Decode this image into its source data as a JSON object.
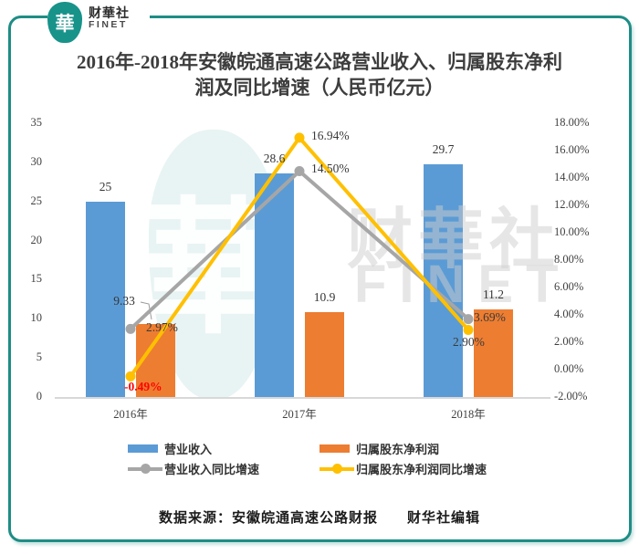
{
  "logo": {
    "glyph": "華",
    "brand_cn": "财華社",
    "brand_en": "FINET"
  },
  "title": "2016年-2018年安徽皖通高速公路营业收入、归属股东净利润及同比增速（人民币亿元）",
  "watermark": {
    "glyph": "華",
    "text_cn": "财華社",
    "text_en": "FINET"
  },
  "chart_data": {
    "type": "combo-bar-line",
    "title": "2016年-2018年安徽皖通高速公路营业收入、归属股东净利润及同比增速（人民币亿元）",
    "categories": [
      "2016年",
      "2017年",
      "2018年"
    ],
    "series": [
      {
        "name": "营业收入",
        "kind": "bar",
        "axis": "left",
        "color": "#5B9BD5",
        "values": [
          25,
          28.6,
          29.7
        ],
        "labels": [
          "25",
          "28.6",
          "29.7"
        ]
      },
      {
        "name": "归属股东净利润",
        "kind": "bar",
        "axis": "left",
        "color": "#ED7D31",
        "values": [
          9.33,
          10.9,
          11.2
        ],
        "labels": [
          "9.33",
          "10.9",
          "11.2"
        ]
      },
      {
        "name": "营业收入同比增速",
        "kind": "line",
        "axis": "right",
        "color": "#A6A6A6",
        "values": [
          2.97,
          14.5,
          3.69
        ],
        "labels": [
          "2.97%",
          "14.50%",
          "3.69%"
        ]
      },
      {
        "name": "归属股东净利润同比增速",
        "kind": "line",
        "axis": "right",
        "color": "#FFC000",
        "values": [
          -0.49,
          16.94,
          2.9
        ],
        "labels": [
          "-0.49%",
          "16.94%",
          "2.90%"
        ],
        "label_colors": [
          "#FF0000",
          null,
          null
        ]
      }
    ],
    "left_axis": {
      "min": 0,
      "max": 35,
      "step": 5,
      "ticks": [
        "35",
        "30",
        "25",
        "20",
        "15",
        "10",
        "5",
        "0"
      ]
    },
    "right_axis": {
      "min": -2,
      "max": 18,
      "step": 2,
      "format": "percent",
      "ticks": [
        "18.00%",
        "16.00%",
        "14.00%",
        "12.00%",
        "10.00%",
        "8.00%",
        "6.00%",
        "4.00%",
        "2.00%",
        "0.00%",
        "-2.00%"
      ]
    },
    "grid": false,
    "legend_position": "bottom"
  },
  "legend": {
    "items": [
      {
        "label": "营业收入",
        "swatch": "bar",
        "color": "#5B9BD5"
      },
      {
        "label": "归属股东净利润",
        "swatch": "bar",
        "color": "#ED7D31"
      },
      {
        "label": "营业收入同比增速",
        "swatch": "line",
        "color": "#A6A6A6"
      },
      {
        "label": "归属股东净利润同比增速",
        "swatch": "line",
        "color": "#FFC000"
      }
    ]
  },
  "source": "数据来源：安徽皖通高速公路财报　　财华社编辑",
  "colors": {
    "brand_teal": "#17938A",
    "frame_teal": "#1E8D85",
    "negative_label_red": "#FF0000"
  }
}
